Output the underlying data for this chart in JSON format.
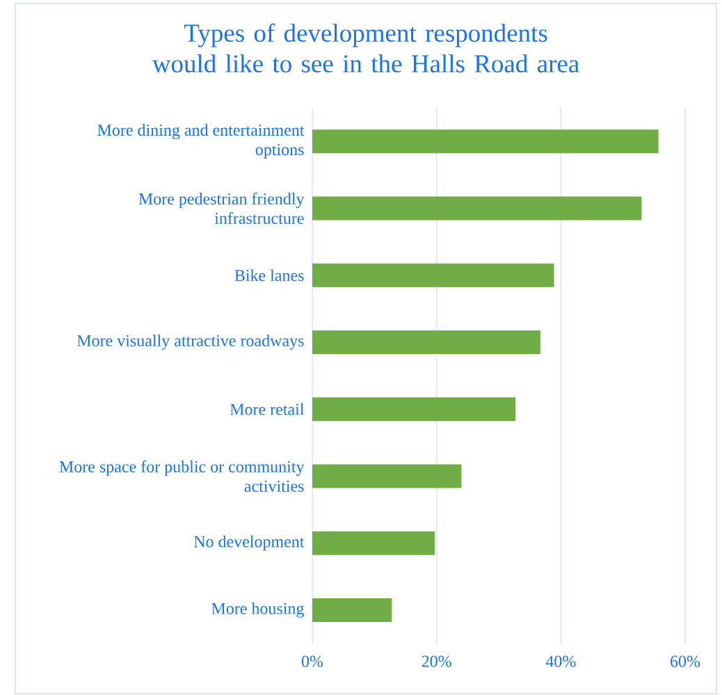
{
  "chart_data": {
    "type": "bar",
    "orientation": "horizontal",
    "title": "Types of development respondents would like to see in the Halls Road area",
    "categories": [
      "More dining and entertainment options",
      "More pedestrian friendly infrastructure",
      "Bike lanes",
      "More visually attractive roadways",
      "More retail",
      "More space for public or community activities",
      "No development",
      "More housing"
    ],
    "values": [
      55.7,
      53.0,
      38.9,
      36.7,
      32.7,
      24.0,
      19.7,
      12.8
    ],
    "color": "#70ad47",
    "xlim": [
      0,
      60
    ],
    "xticks": [
      {
        "value": 0,
        "label": "0%"
      },
      {
        "value": 20,
        "label": "20%"
      },
      {
        "value": 40,
        "label": "40%"
      },
      {
        "value": 60,
        "label": "60%"
      }
    ],
    "grid": "x"
  }
}
